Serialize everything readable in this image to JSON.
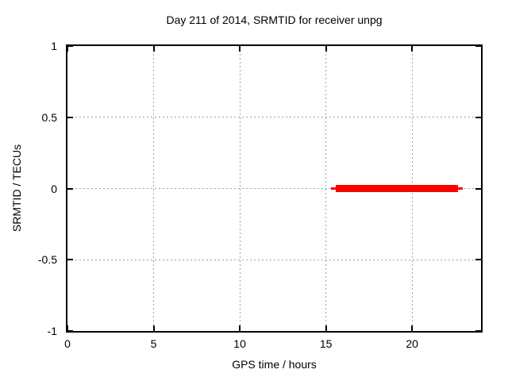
{
  "page": {
    "background_color": "#ffffff",
    "text_color": "#000000"
  },
  "chart_data": {
    "type": "line",
    "title": "Day 211 of 2014, SRMTID for receiver unpg",
    "xlabel": "GPS time / hours",
    "ylabel": "SRMTID / TECUs",
    "xlim": [
      0,
      24
    ],
    "ylim": [
      -1,
      1
    ],
    "xticks": [
      0,
      5,
      10,
      15,
      20
    ],
    "yticks": [
      -1,
      -0.5,
      0,
      0.5,
      1
    ],
    "grid": true,
    "grid_style": "dotted",
    "grid_color": "#a0a0a0",
    "axis_color": "#000000",
    "legend": "none",
    "series": [
      {
        "name": "SRMTID",
        "color": "#ff0000",
        "description": "SRMTID is approximately 0 TECUs for the whole data span; data exists only from about 15.3 to 22.9 GPS hours (no data before 15.3 h)",
        "y_value": 0,
        "x_start": 15.3,
        "x_end": 22.9,
        "segments": [
          {
            "x1": 15.3,
            "x2": 22.92,
            "y": 0,
            "linewidth": 3
          },
          {
            "x1": 15.55,
            "x2": 22.65,
            "y": 0,
            "linewidth": 9
          }
        ]
      }
    ]
  }
}
